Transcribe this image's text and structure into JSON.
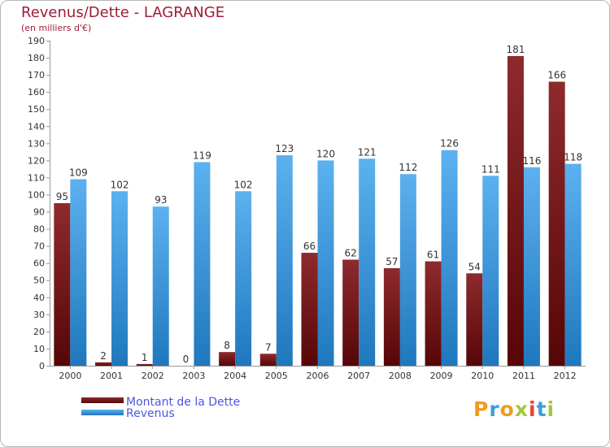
{
  "chart_data": {
    "type": "bar",
    "title": "Revenus/Dette - LAGRANGE",
    "subtitle": "(en milliers d'€)",
    "categories": [
      "2000",
      "2001",
      "2002",
      "2003",
      "2004",
      "2005",
      "2006",
      "2007",
      "2008",
      "2009",
      "2010",
      "2011",
      "2012"
    ],
    "series": [
      {
        "name": "Montant de la Dette",
        "color": "#7a1518",
        "values": [
          95,
          2,
          1,
          0,
          8,
          7,
          66,
          62,
          57,
          61,
          54,
          181,
          166
        ]
      },
      {
        "name": "Revenus",
        "color": "#3ea2e6",
        "values": [
          109,
          102,
          93,
          119,
          102,
          123,
          120,
          121,
          112,
          126,
          111,
          116,
          118
        ]
      }
    ],
    "ylim": [
      0,
      190
    ],
    "ytick_step": 10,
    "grid": false,
    "legend_position": "bottom-left",
    "title_color": "#a01c3a",
    "legend_text_color": "#4a56e0"
  },
  "logo": {
    "letters": [
      "P",
      "r",
      "o",
      "x",
      "i",
      "t",
      "i"
    ],
    "colors": [
      "#f29a1f",
      "#3aa0d9",
      "#f29a1f",
      "#a4c739",
      "#e8442e",
      "#3aa0d9",
      "#a4c739"
    ]
  }
}
